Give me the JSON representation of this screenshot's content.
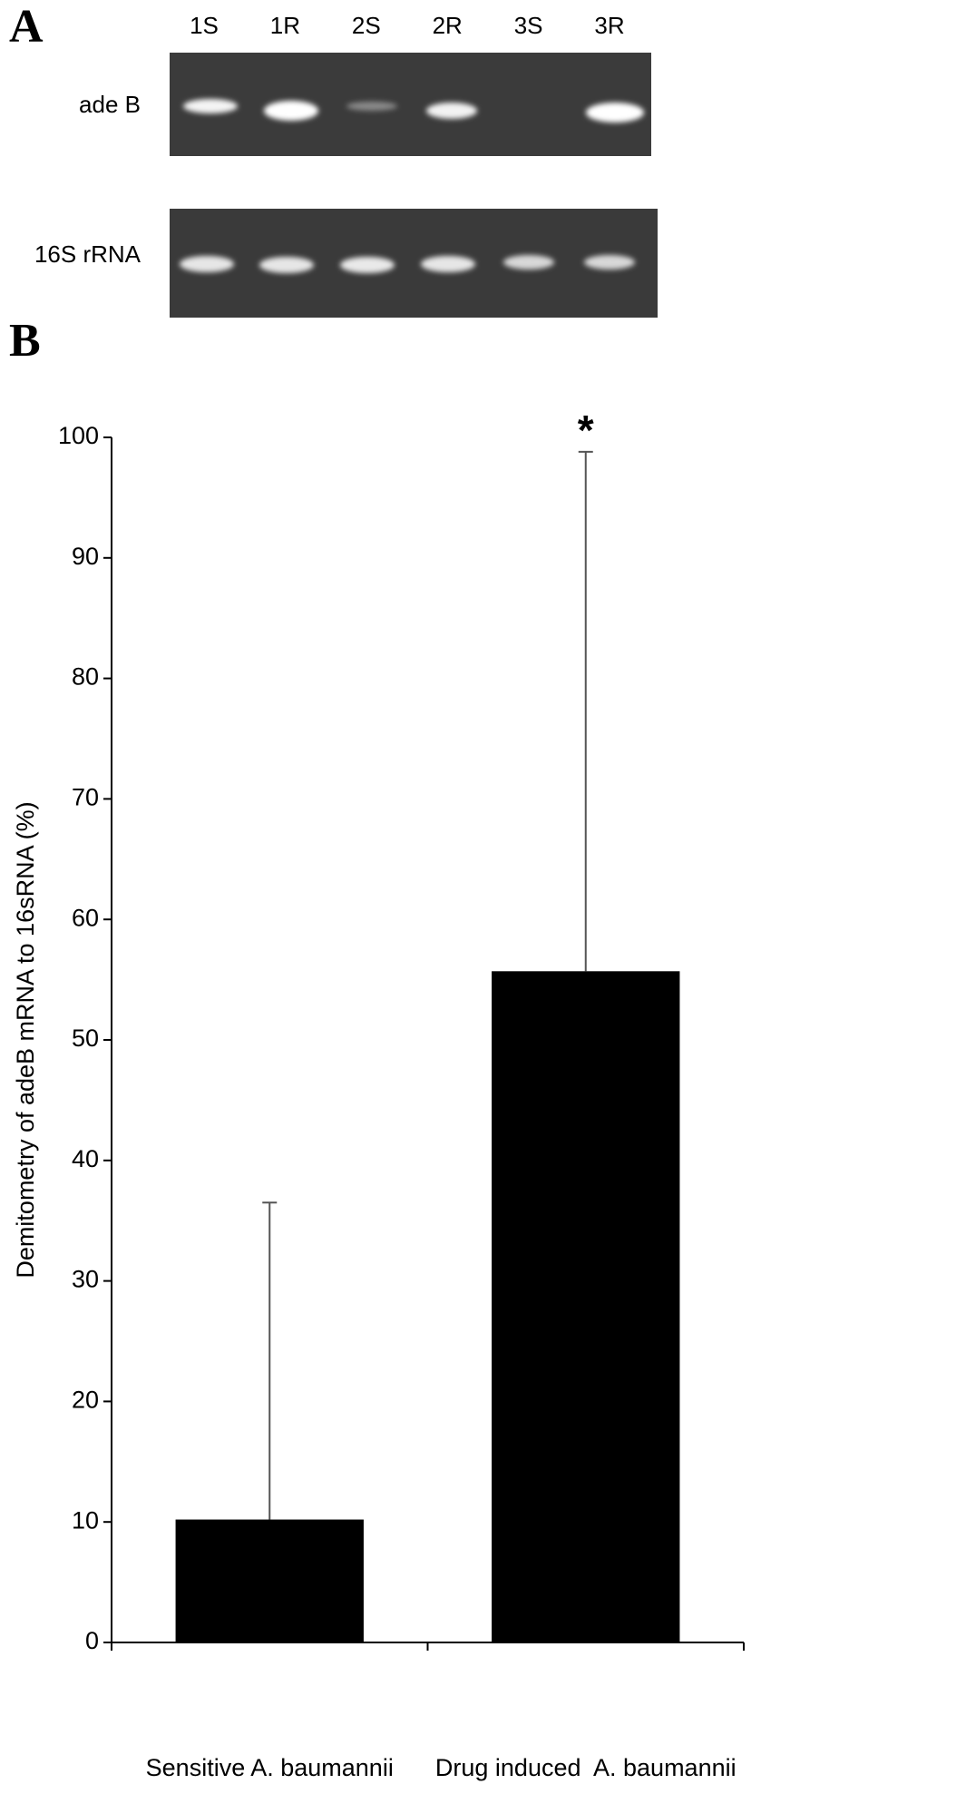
{
  "figure": {
    "panel_a": {
      "label": "A",
      "lanes": [
        "1S",
        "1R",
        "2S",
        "2R",
        "3S",
        "3R"
      ],
      "rows": [
        "ade B",
        "16S rRNA"
      ]
    },
    "panel_b": {
      "label": "B"
    }
  },
  "chart_data": {
    "type": "bar",
    "y_label": "Demitometry of adeB mRNA to 16sRNA (%)",
    "categories": [
      "Sensitive A. baumannii",
      "Drug induced  A. baumannii"
    ],
    "values": [
      10.2,
      55.7
    ],
    "errors": [
      26.3,
      43.1
    ],
    "color": "#000000",
    "ylim": [
      0,
      100
    ],
    "yticks": [
      0,
      10,
      20,
      30,
      40,
      50,
      60,
      70,
      80,
      90,
      100
    ],
    "annotations": [
      {
        "text": "*",
        "category": "Drug induced  A. baumannii"
      }
    ]
  }
}
